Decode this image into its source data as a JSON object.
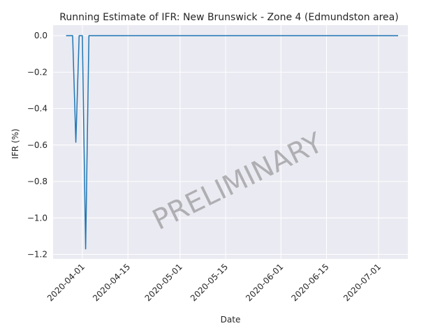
{
  "chart_data": {
    "type": "line",
    "title": "Running Estimate of IFR: New Brunswick - Zone 4 (Edmundston area)",
    "xlabel": "Date",
    "ylabel": "IFR (%)",
    "watermark": "PRELIMINARY",
    "xlim": [
      "2020-03-23",
      "2020-07-10"
    ],
    "ylim": [
      -1.225,
      0.058
    ],
    "x_ticks": [
      "2020-04-01",
      "2020-04-15",
      "2020-05-01",
      "2020-05-15",
      "2020-06-01",
      "2020-06-15",
      "2020-07-01"
    ],
    "y_ticks": [
      0.0,
      -0.2,
      -0.4,
      -0.6,
      -0.8,
      -1.0,
      -1.2
    ],
    "y_tick_labels": [
      "0.0",
      "−0.2",
      "−0.4",
      "−0.6",
      "−0.8",
      "−1.0",
      "−1.2"
    ],
    "grid": true,
    "line_color": "#1f77b4",
    "series": [
      {
        "x": [
          "2020-03-27",
          "2020-03-29",
          "2020-03-30",
          "2020-03-31",
          "2020-04-01",
          "2020-04-02",
          "2020-04-03",
          "2020-04-04",
          "2020-04-15",
          "2020-05-01",
          "2020-06-01",
          "2020-07-01",
          "2020-07-07"
        ],
        "values": [
          0.0,
          0.0,
          -0.585,
          0.0,
          0.0,
          -1.17,
          0.0,
          0.0,
          0.0,
          0.0,
          0.0,
          0.0,
          0.0
        ]
      }
    ]
  }
}
